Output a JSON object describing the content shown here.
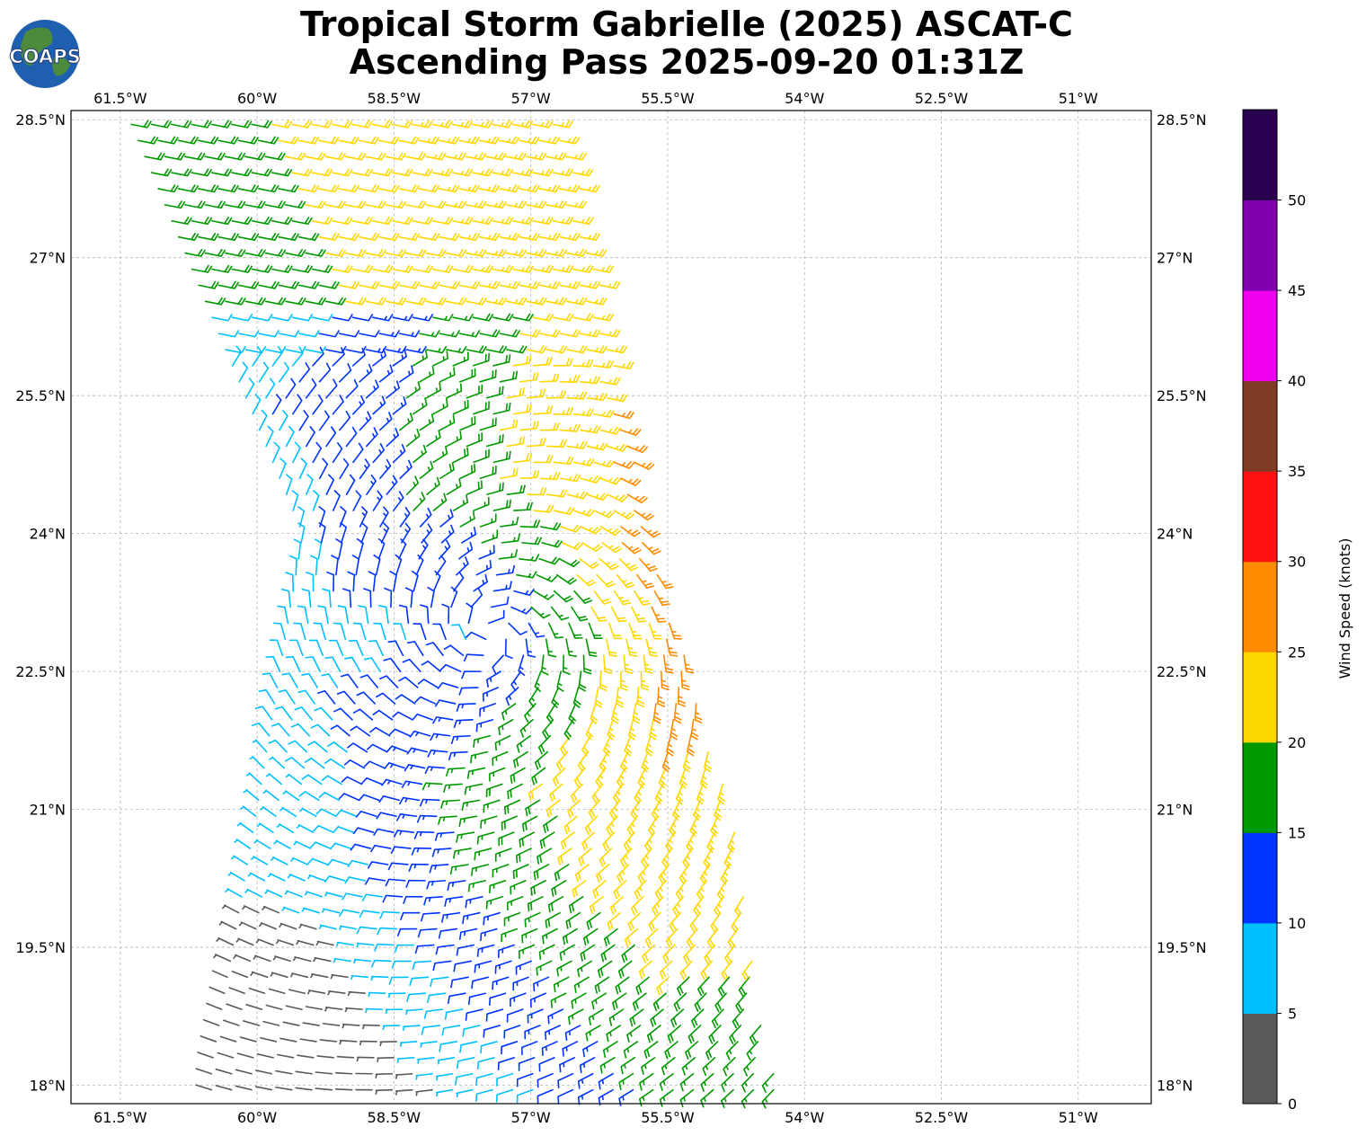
{
  "header": {
    "title_line1": "Tropical Storm Gabrielle (2025) ASCAT-C",
    "title_line2": "Ascending Pass 2025-09-20 01:31Z"
  },
  "logo": {
    "text": "COAPS",
    "ocean_color": "#1f5fb0",
    "land_color": "#4d8a3c"
  },
  "chart_data": {
    "type": "wind-barb-map",
    "xlim": [
      -62.04,
      -50.2
    ],
    "ylim": [
      17.8,
      28.6
    ],
    "x_ticks": [
      {
        "value": -61.5,
        "label": "61.5°W"
      },
      {
        "value": -60,
        "label": "60°W"
      },
      {
        "value": -58.5,
        "label": "58.5°W"
      },
      {
        "value": -57,
        "label": "57°W"
      },
      {
        "value": -55.5,
        "label": "55.5°W"
      },
      {
        "value": -54,
        "label": "54°W"
      },
      {
        "value": -52.5,
        "label": "52.5°W"
      },
      {
        "value": -51,
        "label": "51°W"
      }
    ],
    "y_ticks": [
      {
        "value": 28.5,
        "label": "28.5°N"
      },
      {
        "value": 27,
        "label": "27°N"
      },
      {
        "value": 25.5,
        "label": "25.5°N"
      },
      {
        "value": 24,
        "label": "24°N"
      },
      {
        "value": 22.5,
        "label": "22.5°N"
      },
      {
        "value": 21,
        "label": "21°N"
      },
      {
        "value": 19.5,
        "label": "19.5°N"
      },
      {
        "value": 18,
        "label": "18°N"
      }
    ],
    "grid": true,
    "storm_center": {
      "lon": -57.45,
      "lat": 22.9
    },
    "swath": {
      "west_edge": [
        [
          -60.5,
          18.2
        ],
        [
          -60.0,
          21.0
        ],
        [
          -59.5,
          24.0
        ],
        [
          -61.4,
          28.5
        ]
      ],
      "east_edge": [
        [
          -54.3,
          17.9
        ],
        [
          -54.8,
          21.0
        ],
        [
          -55.7,
          24.0
        ],
        [
          -56.6,
          28.5
        ]
      ]
    },
    "colorbar": {
      "label": "Wind Speed (knots)",
      "min": 0,
      "max": 55,
      "tick_values": [
        0,
        5,
        10,
        15,
        20,
        25,
        30,
        35,
        40,
        45,
        50
      ],
      "bins": [
        {
          "from": 0,
          "to": 5,
          "color": "#595959"
        },
        {
          "from": 5,
          "to": 10,
          "color": "#00bfff"
        },
        {
          "from": 10,
          "to": 15,
          "color": "#0033ff"
        },
        {
          "from": 15,
          "to": 20,
          "color": "#009900"
        },
        {
          "from": 20,
          "to": 25,
          "color": "#ffd700"
        },
        {
          "from": 25,
          "to": 30,
          "color": "#ff8c00"
        },
        {
          "from": 30,
          "to": 35,
          "color": "#ff1111"
        },
        {
          "from": 35,
          "to": 40,
          "color": "#803b25"
        },
        {
          "from": 40,
          "to": 45,
          "color": "#ee00ee"
        },
        {
          "from": 45,
          "to": 50,
          "color": "#8000b0"
        },
        {
          "from": 50,
          "to": 55,
          "color": "#2a0050"
        }
      ]
    }
  }
}
